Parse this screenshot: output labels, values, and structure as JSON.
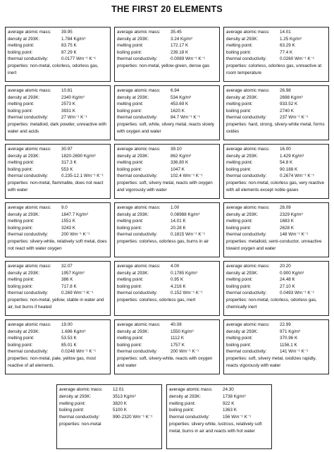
{
  "title": "THE FIRST 20 ELEMENTS",
  "labels": {
    "mass": "average atomic mass:",
    "density": "density at 293K:",
    "melting": "melting point:",
    "boiling": "boiling point:",
    "thermal": "thermal conductivity:"
  },
  "cards": [
    {
      "mass": "39.95",
      "density": "1.784 Kg/m³",
      "melting": "83.75 K",
      "boiling": "87.29 K",
      "thermal": "0.0177 Wm⁻¹ K⁻¹",
      "props": "properties: non-metal, colorless, odorless gas, inert"
    },
    {
      "mass": "35.45",
      "density": "3.24 Kg/m³",
      "melting": "172.17 K",
      "boiling": "239.18 K",
      "thermal": "0.0089 Wm⁻¹ K⁻¹",
      "props": "properties: non-metal, yellow-green, dense gas"
    },
    {
      "mass": "14.01",
      "density": "1.25 Kg/m³",
      "melting": "63.29 K",
      "boiling": "77.4 K",
      "thermal": "0.0260 Wm⁻¹ K⁻¹",
      "props": "properties: colorless, odorless gas, unreactive at room temperature"
    },
    {
      "mass": "10.81",
      "density": "2340 Kg/m³",
      "melting": "2573 K",
      "boiling": "3931 K",
      "thermal": "27 Wm⁻¹ K⁻¹",
      "props": "properties: metalloid, dark powder, unreactive with water and acids"
    },
    {
      "mass": "6.94",
      "density": "534 Kg/m³",
      "melting": "453.69 K",
      "boiling": "1620 K",
      "thermal": "84.7 Wm⁻¹ K⁻¹",
      "props": "properties: soft, white, silvery metal, reacts slowly with oxygen and water"
    },
    {
      "mass": "26.98",
      "density": "2698 Kg/m³",
      "melting": "933.52 K",
      "boiling": "2740 K",
      "thermal": "237 Wm⁻¹ K⁻¹",
      "props": "properties: hard, strong, silvery-white metal, forms oxides"
    },
    {
      "mass": "30.97",
      "density": "1820-2690 Kg/m³",
      "melting": "317.3 K",
      "boiling": "553 K",
      "thermal": "0.235-12.1 Wm⁻¹ K⁻¹",
      "props": "properties: non-metal, flammable, does not react with water"
    },
    {
      "mass": "39.10",
      "density": "862 Kg/m³",
      "melting": "336.80 K",
      "boiling": "1047 K",
      "thermal": "102.4 Wm⁻¹ K⁻¹",
      "props": "properties: soft, silvery metal, reacts with oxygen and vigorously with water"
    },
    {
      "mass": "16.00",
      "density": "1.429 Kg/m³",
      "melting": "54.8 K",
      "boiling": "90.188 K",
      "thermal": "0.2674 Wm⁻¹ K⁻¹",
      "props": "properties: non-metal, colorless gas, very reactive with all elements except noble gases"
    },
    {
      "mass": "9.0",
      "density": "1847.7 Kg/m³",
      "melting": "1551 K",
      "boiling": "3243 K",
      "thermal": "200 Wm⁻¹ K⁻¹",
      "props": "properties: silvery-white, relatively soft metal, does not react with water oxygen"
    },
    {
      "mass": "1.00",
      "density": "0.08988 Kg/m³",
      "melting": "14.01 K",
      "boiling": "20.28 K",
      "thermal": "0.1815 Wm⁻¹ K⁻¹",
      "props": "properties: colorless, odorless gas, burns in air"
    },
    {
      "mass": "28.09",
      "density": "2329 Kg/m³",
      "melting": "1683 K",
      "boiling": "2628 K",
      "thermal": "148 Wm⁻¹ K⁻¹",
      "props": "properties: metalloid, semi-conductor, unreactive toward oxygen and water"
    },
    {
      "mass": "32.07",
      "density": "1957 Kg/m³",
      "melting": "386 K",
      "boiling": "717.8 K",
      "thermal": "0.269 Wm⁻¹ K⁻¹",
      "props": "properties: non-metal, yellow, stable in water and air, but burns if heated"
    },
    {
      "mass": "4.00",
      "density": "0.1785 Kg/m³",
      "melting": "0.95 K",
      "boiling": "4.216 K",
      "thermal": "0.152 Wm⁻¹ K⁻¹",
      "props": "properties: colorless, odorless gas, inert"
    },
    {
      "mass": "20.20",
      "density": "0.900 Kg/m³",
      "melting": "24.48 K",
      "boiling": "27.10 K",
      "thermal": "0.0493 Wm⁻¹ K⁻¹",
      "props": "properties: non-metal, colorless, odorless gas, chemically inert"
    },
    {
      "mass": "19.00",
      "density": "1.696 Kg/m³",
      "melting": "53.53 K",
      "boiling": "85.01 K",
      "thermal": "0.0248 Wm⁻¹ K⁻¹",
      "props": "properties: non-metal, pale, yellow gas, most reactive of all elements."
    },
    {
      "mass": "40.08",
      "density": "1550 Kg/m³",
      "melting": "1112 K",
      "boiling": "1757 K",
      "thermal": "200 Wm⁻¹ K⁻¹",
      "props": "properties: soft, silvery-white, reacts with oxygen and water"
    },
    {
      "mass": "22.99",
      "density": "971 Kg/m³",
      "melting": "370.96 K",
      "boiling": "1156.1 K",
      "thermal": "141 Wm⁻¹ K⁻¹",
      "props": "properties: soft, silvery metal, oxidizes rapidly, reacts vigorously with water"
    },
    {
      "mass": "12.01",
      "density": "3513 Kg/m³",
      "melting": "3820 K",
      "boiling": "5100 K",
      "thermal": "990-2320 Wm⁻¹ K⁻¹",
      "props": "properties: non-metal"
    },
    {
      "mass": "24.30",
      "density": "1738 Kg/m³",
      "melting": "922 K",
      "boiling": "1363 K",
      "thermal": "156 Wm⁻¹ K⁻¹",
      "props": "properties: silvery white, lustrous, relatively soft metal, burns in air and reacts with hot water"
    }
  ]
}
